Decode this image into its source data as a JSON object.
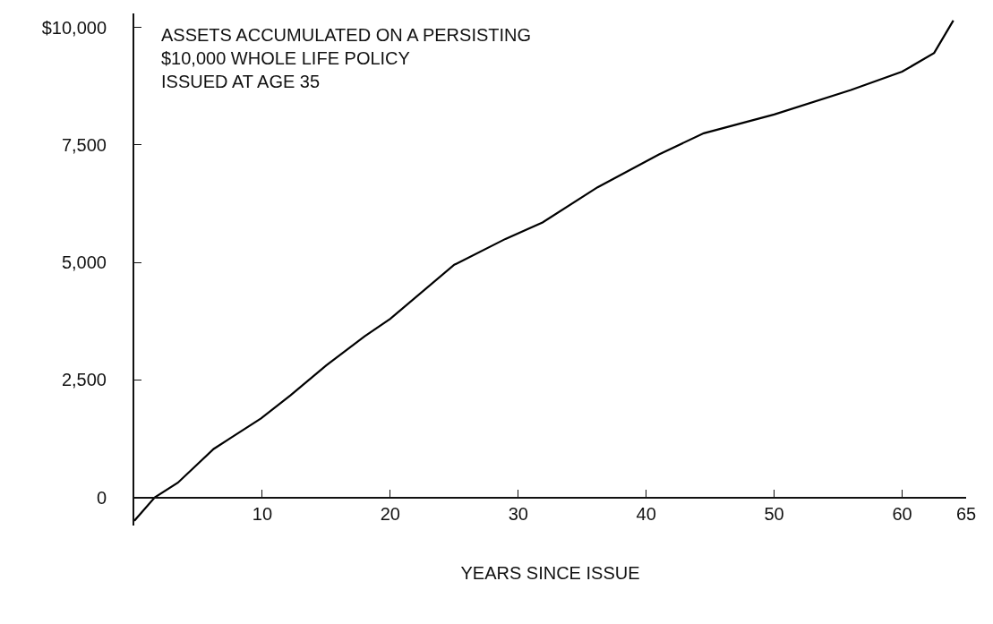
{
  "chart_data": {
    "type": "line",
    "xlabel": "YEARS SINCE ISSUE",
    "annotations": [
      "ASSETS ACCUMULATED ON A PERSISTING\n$10,000 WHOLE LIFE POLICY\nISSUED AT AGE 35"
    ],
    "x": [
      0,
      1.6,
      3.4,
      6.2,
      9.9,
      12.2,
      15,
      18,
      20,
      25,
      29,
      31.9,
      36.2,
      41,
      44.5,
      50,
      56,
      60,
      62.5,
      64
    ],
    "series": [
      {
        "color": "#000000",
        "values": [
          -500,
          0,
          310,
          1030,
          1680,
          2170,
          2810,
          3430,
          3800,
          4950,
          5500,
          5850,
          6600,
          7300,
          7750,
          8150,
          8670,
          9060,
          9460,
          10150
        ]
      }
    ],
    "xlim": [
      0,
      65
    ],
    "xticks": [
      10,
      20,
      30,
      40,
      50,
      60,
      65
    ],
    "ylim": [
      -600,
      10300
    ],
    "yticks": [
      0,
      {
        "value": 2500,
        "label": "2,500"
      },
      {
        "value": 5000,
        "label": "5,000"
      },
      {
        "value": 7500,
        "label": "7,500"
      },
      {
        "value": 10000,
        "label": "$10,000"
      }
    ],
    "grid": false,
    "marker": "none",
    "line_style": "solid"
  }
}
